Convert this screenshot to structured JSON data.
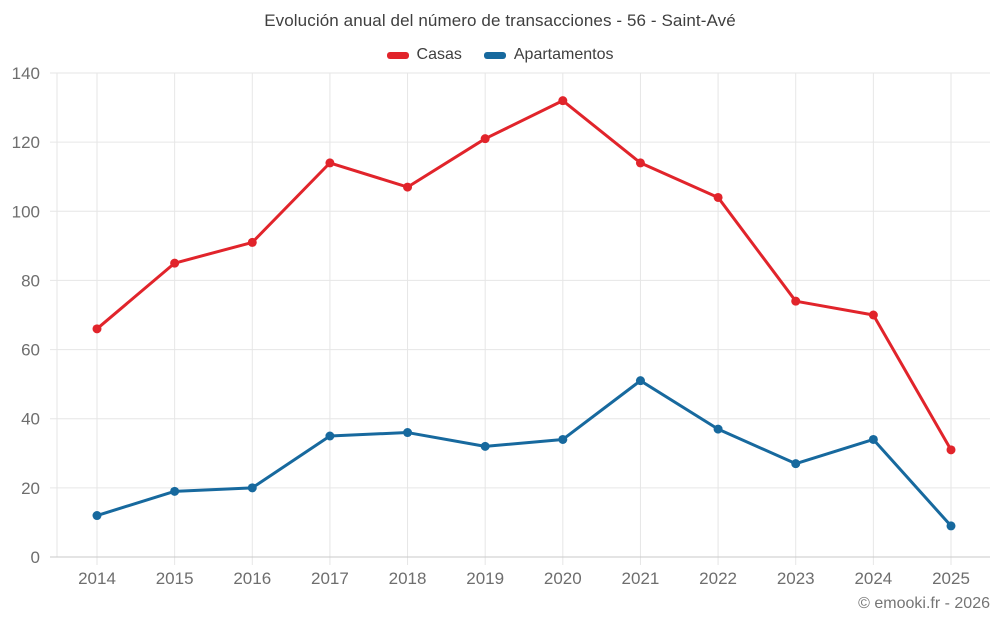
{
  "chart_data": {
    "type": "line",
    "title": "Evolución anual del número de transacciones - 56 - Saint-Avé",
    "categories": [
      "2014",
      "2015",
      "2016",
      "2017",
      "2018",
      "2019",
      "2020",
      "2021",
      "2022",
      "2023",
      "2024",
      "2025"
    ],
    "series": [
      {
        "name": "Casas",
        "color": "#e1242b",
        "values": [
          66,
          85,
          91,
          114,
          107,
          121,
          132,
          114,
          104,
          74,
          70,
          31
        ]
      },
      {
        "name": "Apartamentos",
        "color": "#17699e",
        "values": [
          12,
          19,
          20,
          35,
          36,
          32,
          34,
          51,
          37,
          27,
          34,
          9
        ]
      }
    ],
    "ylim": [
      0,
      140
    ],
    "yticks": [
      0,
      20,
      40,
      60,
      80,
      100,
      120,
      140
    ],
    "grid": true,
    "legend_position": "top",
    "colors": {
      "grid": "#e6e6e6",
      "axis": "#c9c9c9",
      "tick_label": "#6e6e6e",
      "title": "#3f3f3f",
      "attribution": "#757575"
    }
  },
  "footer": {
    "attribution": "© emooki.fr - 2026"
  }
}
